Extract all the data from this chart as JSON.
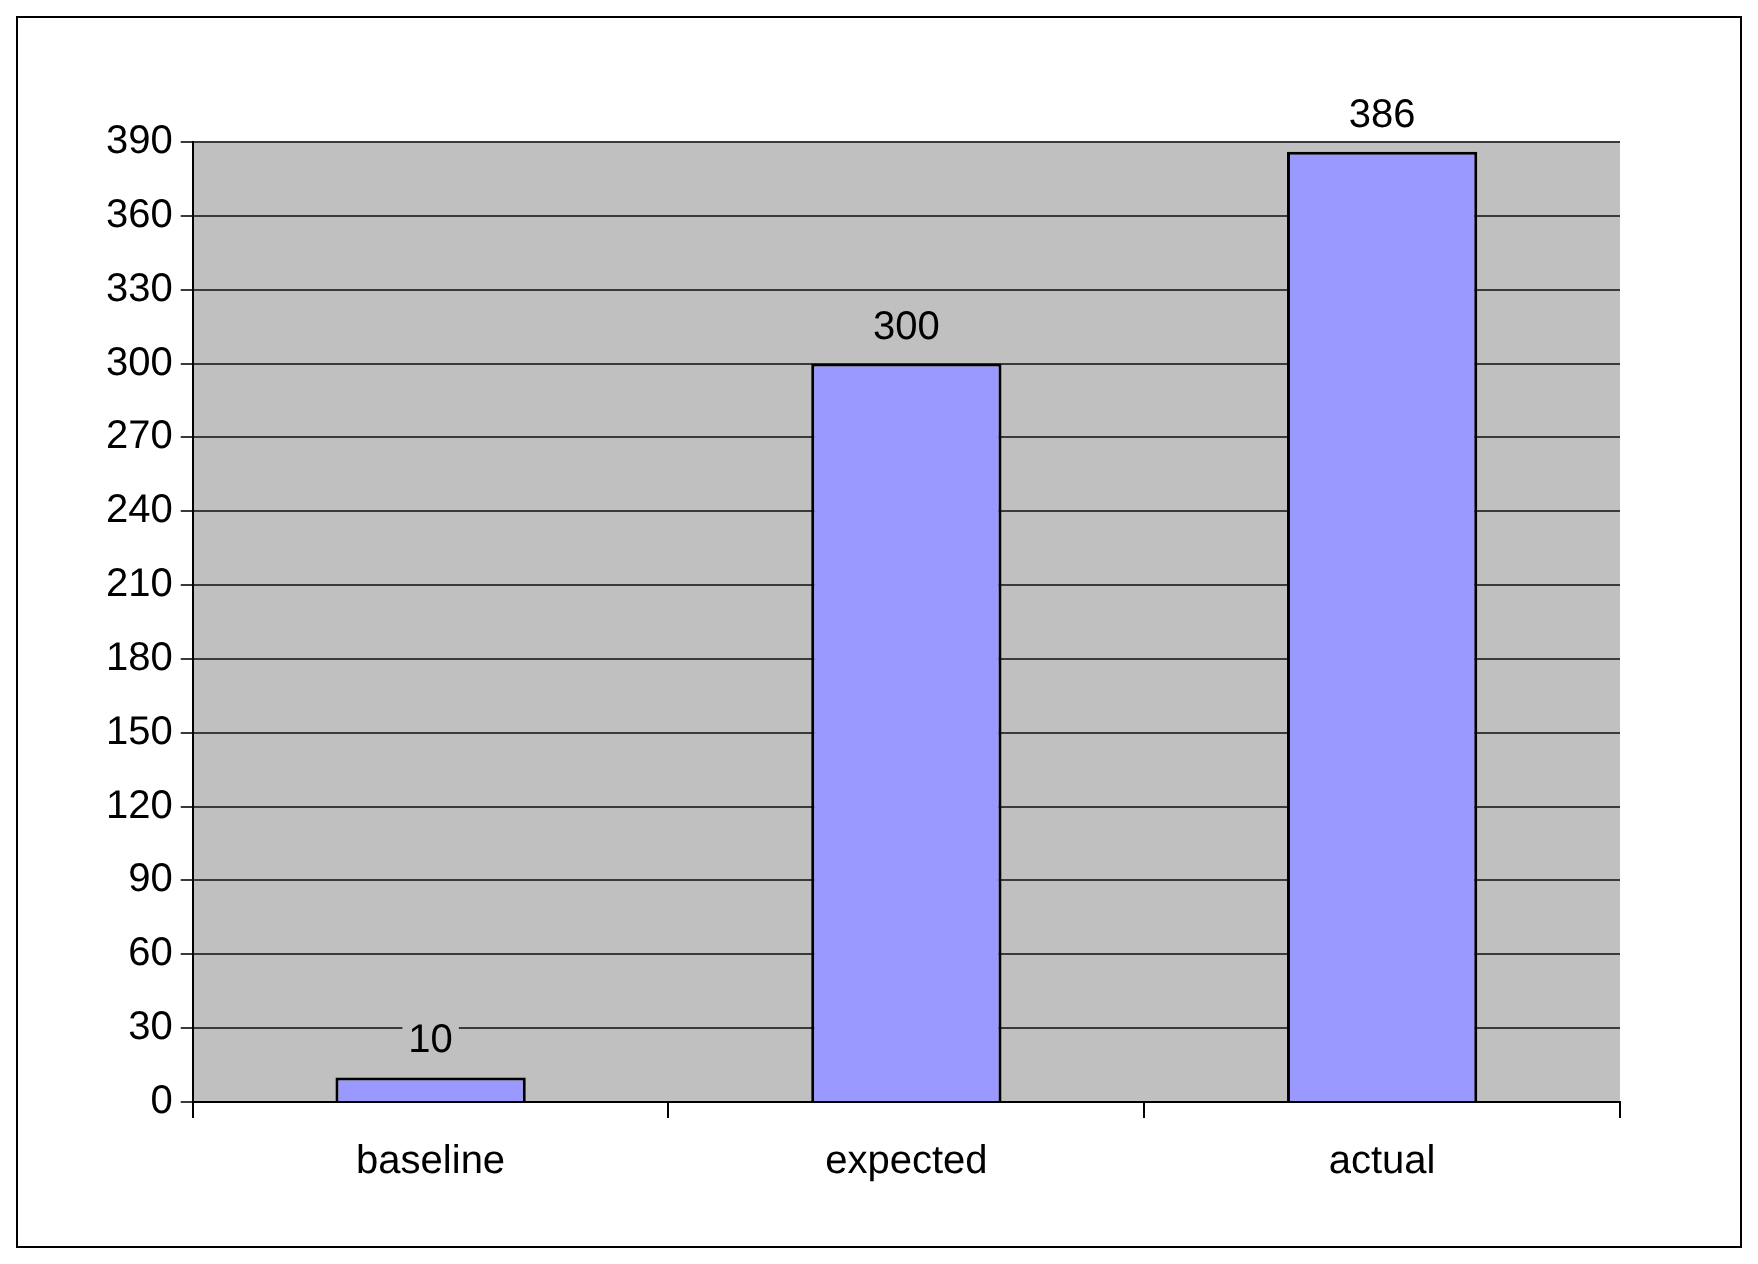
{
  "chart_data": {
    "type": "bar",
    "categories": [
      "baseline",
      "expected",
      "actual"
    ],
    "values": [
      10,
      300,
      386
    ],
    "color": "#9999ff",
    "ylim": [
      0,
      390
    ],
    "yticks": [
      0,
      30,
      60,
      90,
      120,
      150,
      180,
      210,
      240,
      270,
      300,
      330,
      360,
      390
    ],
    "grid": "y",
    "data_labels": true
  }
}
